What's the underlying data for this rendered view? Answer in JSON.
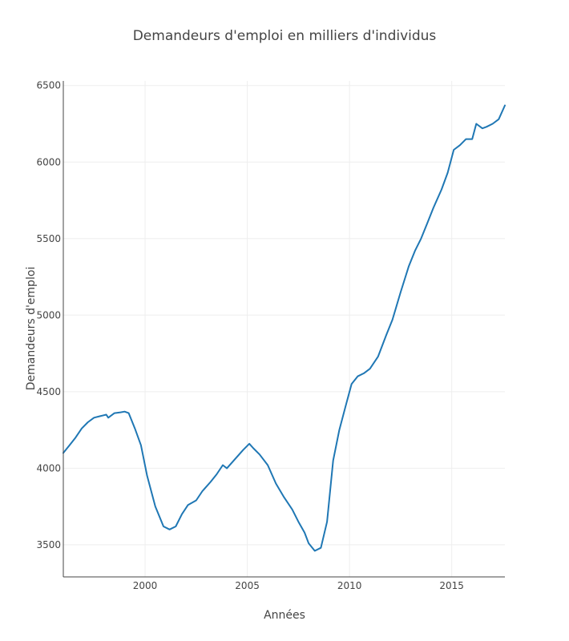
{
  "chart_data": {
    "type": "line",
    "title": "Demandeurs d'emploi en milliers d'individus",
    "xlabel": "Années",
    "ylabel": "Demandeurs d'emploi",
    "xlim": [
      1996.0,
      2017.6
    ],
    "ylim": [
      3290,
      6530
    ],
    "x_ticks": [
      2000,
      2005,
      2010,
      2015
    ],
    "y_ticks": [
      3500,
      4000,
      4500,
      5000,
      5500,
      6000,
      6500
    ],
    "grid": true,
    "legend": "none",
    "series": [
      {
        "color": "#1f77b4",
        "x": [
          1996.0,
          1996.3,
          1996.6,
          1996.9,
          1997.2,
          1997.5,
          1997.8,
          1998.1,
          1998.2,
          1998.5,
          1998.8,
          1999.0,
          1999.2,
          1999.5,
          1999.8,
          2000.1,
          2000.5,
          2000.9,
          2001.2,
          2001.5,
          2001.8,
          2002.1,
          2002.5,
          2002.8,
          2003.2,
          2003.5,
          2003.8,
          2004.0,
          2004.4,
          2004.8,
          2005.1,
          2005.3,
          2005.6,
          2006.0,
          2006.4,
          2006.8,
          2007.2,
          2007.5,
          2007.8,
          2008.0,
          2008.3,
          2008.6,
          2008.9,
          2009.2,
          2009.5,
          2009.8,
          2010.1,
          2010.4,
          2010.7,
          2011.0,
          2011.4,
          2011.8,
          2012.1,
          2012.5,
          2012.9,
          2013.2,
          2013.5,
          2013.8,
          2014.1,
          2014.5,
          2014.8,
          2015.1,
          2015.4,
          2015.7,
          2016.0,
          2016.2,
          2016.5,
          2016.7,
          2017.0,
          2017.3,
          2017.6
        ],
        "values": [
          4100,
          4150,
          4200,
          4260,
          4300,
          4330,
          4340,
          4350,
          4330,
          4360,
          4365,
          4370,
          4360,
          4260,
          4150,
          3950,
          3750,
          3620,
          3600,
          3620,
          3700,
          3760,
          3790,
          3850,
          3910,
          3960,
          4020,
          4000,
          4060,
          4120,
          4160,
          4130,
          4090,
          4020,
          3900,
          3810,
          3730,
          3650,
          3580,
          3510,
          3460,
          3480,
          3650,
          4050,
          4250,
          4400,
          4550,
          4600,
          4620,
          4650,
          4730,
          4870,
          4970,
          5150,
          5320,
          5420,
          5500,
          5600,
          5700,
          5820,
          5930,
          6080,
          6110,
          6150,
          6150,
          6250,
          6220,
          6230,
          6250,
          6280,
          6370
        ]
      }
    ]
  }
}
